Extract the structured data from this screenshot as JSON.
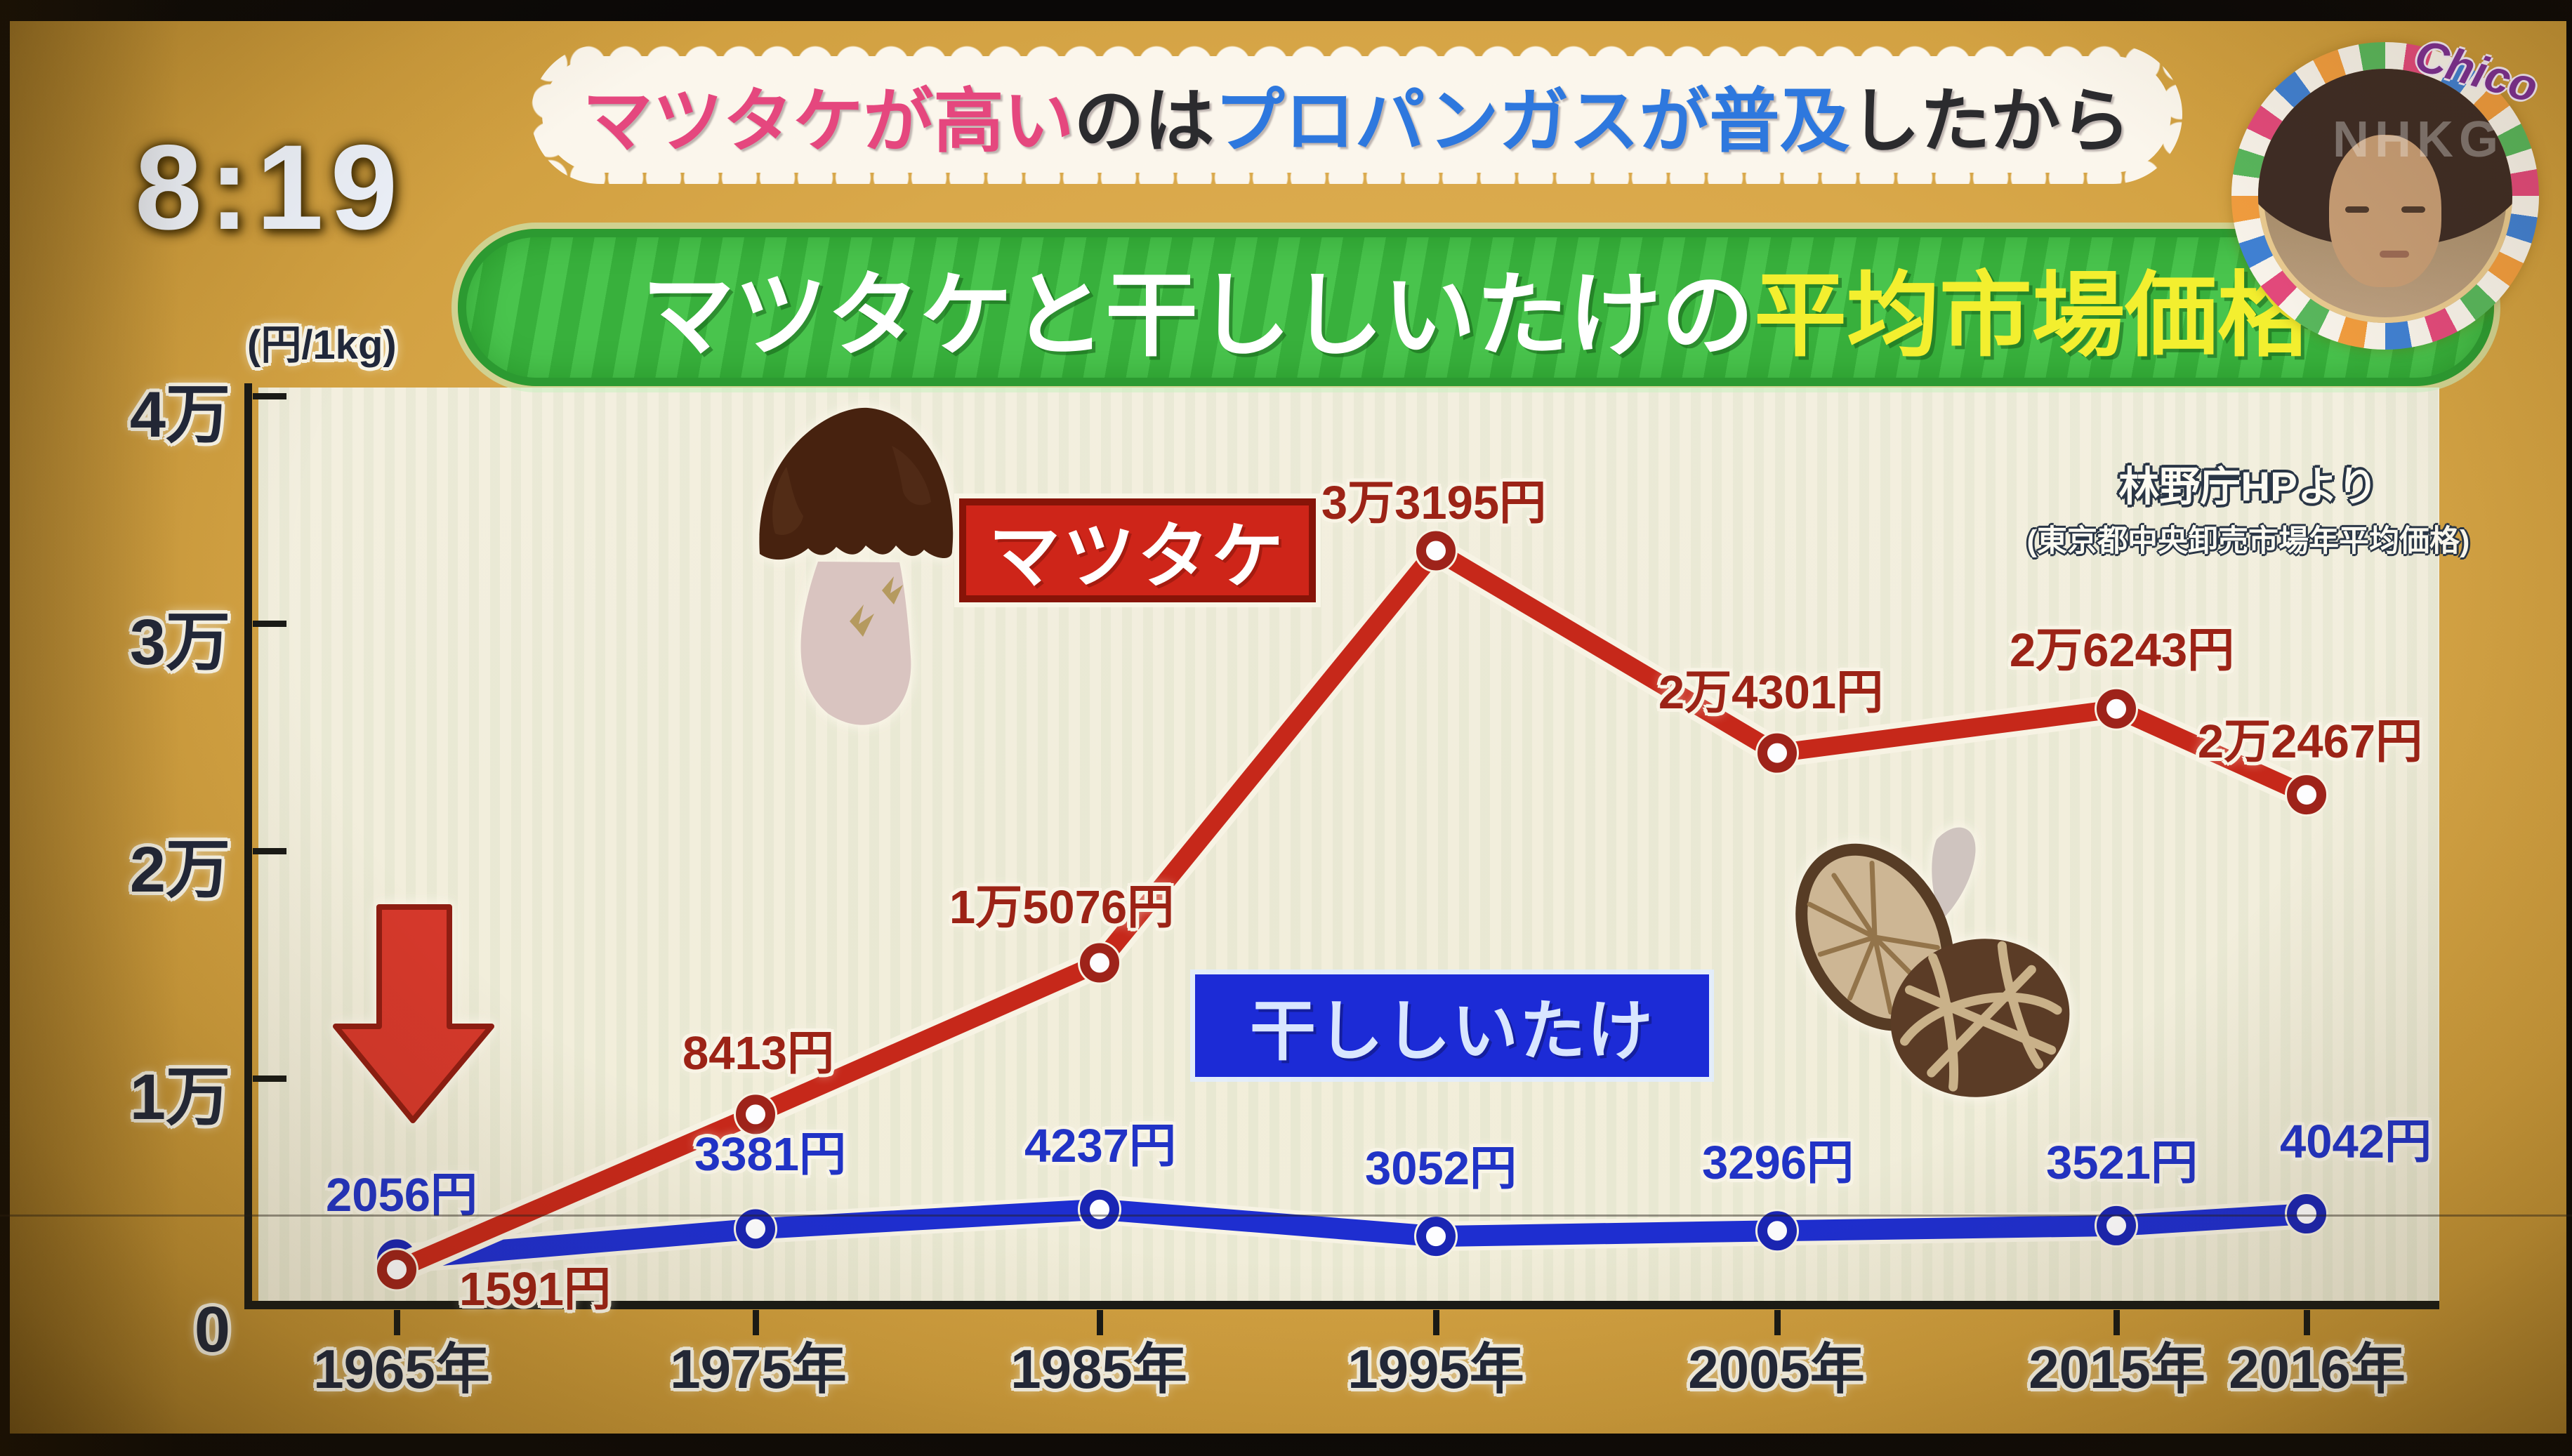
{
  "clock": "8:19",
  "banner": {
    "segments": [
      {
        "text": "マツタケが高い",
        "color": "#e5477e"
      },
      {
        "text": "のは",
        "color": "#2b2b2e"
      },
      {
        "text": "プロパンガスが普及",
        "color": "#2e78de"
      },
      {
        "text": "したから",
        "color": "#2b2b2e"
      }
    ]
  },
  "title": {
    "part1": "マツタケと干ししいたけの",
    "part1_color": "#ffffff",
    "part2": "平均市場価格",
    "part2_color": "#f3ef2f"
  },
  "badge": {
    "label": "Chico",
    "label_color": "#7c2f92",
    "watermark": "NHKG"
  },
  "chart_data": {
    "type": "line",
    "title": "マツタケと干ししいたけの平均市場価格",
    "unit_label": "(円/1kg)",
    "x_categories": [
      "1965年",
      "1975年",
      "1985年",
      "1995年",
      "2005年",
      "2015年",
      "2016年"
    ],
    "ylim": [
      0,
      40000
    ],
    "y_ticks": [
      "4万",
      "3万",
      "2万",
      "1万",
      "0"
    ],
    "grid": false,
    "legend_position": "inline-tags",
    "series": [
      {
        "name": "マツタケ",
        "color": "#c6281a",
        "ring_color": "#9e231a",
        "values": [
          1591,
          8413,
          15076,
          33195,
          24301,
          26243,
          22467
        ],
        "point_labels": [
          "1591円",
          "8413円",
          "1万5076円",
          "3万3195円",
          "2万4301円",
          "2万6243円",
          "2万2467円"
        ]
      },
      {
        "name": "干ししいたけ",
        "color": "#1e2ed0",
        "ring_color": "#1a25b4",
        "values": [
          2056,
          3381,
          4237,
          3052,
          3296,
          3521,
          4042
        ],
        "point_labels": [
          "2056円",
          "3381円",
          "4237円",
          "3052円",
          "3296円",
          "3521円",
          "4042円"
        ]
      }
    ],
    "source_lines": [
      "林野庁HPより",
      "(東京都中央卸売市場年平均価格)"
    ]
  }
}
